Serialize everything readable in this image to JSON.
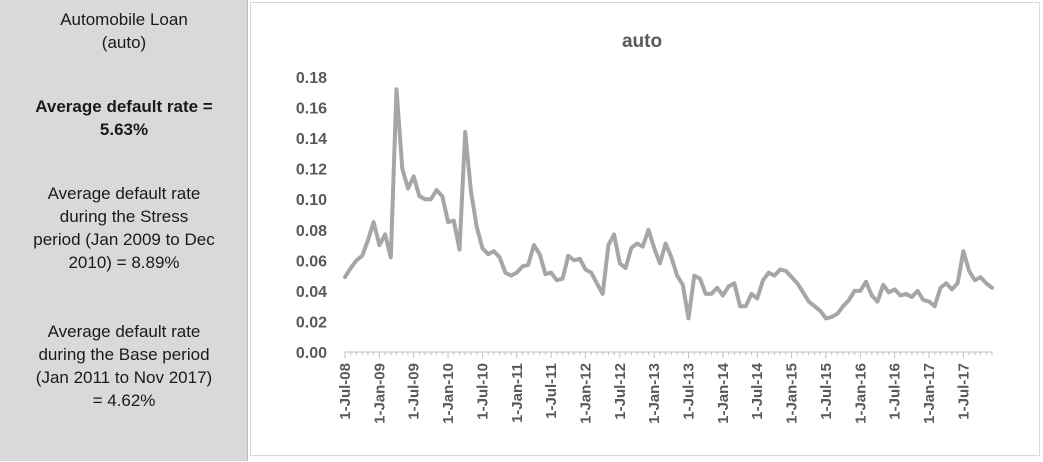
{
  "summary": {
    "title_line1": "Automobile Loan",
    "title_line2": "(auto)",
    "avg_line1": "Average default rate =",
    "avg_line2": "5.63%",
    "stress_line1": "Average default rate",
    "stress_line2": "during the Stress",
    "stress_line3": "period (Jan 2009 to Dec",
    "stress_line4": "2010) = 8.89%",
    "base_line1": "Average default rate",
    "base_line2": "during the Base period",
    "base_line3": "(Jan 2011 to Nov 2017)",
    "base_line4": "= 4.62%"
  },
  "chart_data": {
    "type": "line",
    "title": "auto",
    "xlabel": "",
    "ylabel": "",
    "ylim": [
      0,
      0.18
    ],
    "yticks": [
      "0.00",
      "0.02",
      "0.04",
      "0.06",
      "0.08",
      "0.10",
      "0.12",
      "0.14",
      "0.16",
      "0.18"
    ],
    "xtick_labels": [
      "1-Jul-08",
      "1-Jan-09",
      "1-Jul-09",
      "1-Jan-10",
      "1-Jul-10",
      "1-Jan-11",
      "1-Jul-11",
      "1-Jan-12",
      "1-Jul-12",
      "1-Jan-13",
      "1-Jul-13",
      "1-Jan-14",
      "1-Jul-14",
      "1-Jan-15",
      "1-Jul-15",
      "1-Jan-16",
      "1-Jul-16",
      "1-Jan-17",
      "1-Jul-17"
    ],
    "line_color": "#a6a6a6",
    "grid": false,
    "legend": "none",
    "x_start": "Jul 2008",
    "x_end": "Nov 2017",
    "values": [
      0.049,
      0.055,
      0.06,
      0.063,
      0.073,
      0.085,
      0.07,
      0.077,
      0.062,
      0.172,
      0.12,
      0.107,
      0.115,
      0.102,
      0.1,
      0.1,
      0.106,
      0.102,
      0.085,
      0.086,
      0.067,
      0.144,
      0.105,
      0.082,
      0.068,
      0.064,
      0.066,
      0.062,
      0.052,
      0.05,
      0.052,
      0.056,
      0.057,
      0.07,
      0.064,
      0.051,
      0.052,
      0.047,
      0.048,
      0.063,
      0.06,
      0.061,
      0.054,
      0.052,
      0.045,
      0.038,
      0.07,
      0.077,
      0.058,
      0.055,
      0.068,
      0.071,
      0.069,
      0.08,
      0.068,
      0.058,
      0.071,
      0.062,
      0.05,
      0.044,
      0.022,
      0.05,
      0.048,
      0.038,
      0.038,
      0.042,
      0.037,
      0.043,
      0.045,
      0.03,
      0.03,
      0.038,
      0.035,
      0.047,
      0.052,
      0.05,
      0.054,
      0.053,
      0.049,
      0.045,
      0.039,
      0.033,
      0.03,
      0.027,
      0.022,
      0.023,
      0.025,
      0.03,
      0.034,
      0.04,
      0.04,
      0.046,
      0.037,
      0.033,
      0.044,
      0.039,
      0.041,
      0.037,
      0.038,
      0.036,
      0.04,
      0.034,
      0.033,
      0.03,
      0.042,
      0.045,
      0.041,
      0.045,
      0.066,
      0.053,
      0.047,
      0.049,
      0.045,
      0.042
    ]
  }
}
